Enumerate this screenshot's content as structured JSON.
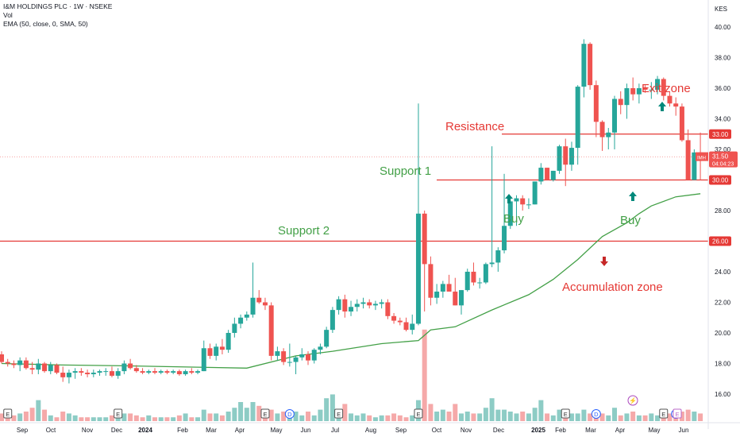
{
  "legend": {
    "title": "I&M HOLDINGS PLC · 1W · NSEKE",
    "vol": "Vol",
    "ema": "EMA (50, close, 0, SMA, 50)"
  },
  "currency": "KES",
  "price_tag": {
    "symbol": "IMH",
    "price": "31.50",
    "countdown": "04:04:23"
  },
  "colors": {
    "up": "#26a69a",
    "down": "#ef5350",
    "vol_up": "#8dccc5",
    "vol_down": "#f5a9a9",
    "ema": "#43a047",
    "hline": "#e53935",
    "green_text": "#43a047",
    "red_text": "#e53935"
  },
  "chart_data": {
    "type": "candlestick",
    "timeframe": "1W",
    "ylim": [
      14.5,
      40.8
    ],
    "y_ticks": [
      "16.00",
      "18.00",
      "20.00",
      "22.00",
      "24.00",
      "26.00",
      "28.00",
      "30.00",
      "32.00",
      "34.00",
      "36.00",
      "38.00",
      "40.00"
    ],
    "x_ticks": [
      "Sep",
      "Oct",
      "Nov",
      "Dec",
      "2024",
      "Feb",
      "Mar",
      "Apr",
      "May",
      "Jun",
      "Jul",
      "Aug",
      "Sep",
      "Oct",
      "Nov",
      "Dec",
      "2025",
      "Feb",
      "Mar",
      "Apr",
      "May",
      "Jun"
    ],
    "horizontal_levels": [
      {
        "price": 33.0,
        "label": "33.00",
        "from": "Dec 2024"
      },
      {
        "price": 30.0,
        "label": "30.00",
        "from": "Oct 2024"
      },
      {
        "price": 26.0,
        "label": "26.00",
        "from": "start"
      }
    ],
    "candles": [
      {
        "o": 18.6,
        "h": 18.8,
        "l": 18.0,
        "c": 18.1
      },
      {
        "o": 18.1,
        "h": 18.3,
        "l": 17.8,
        "c": 18.0
      },
      {
        "o": 18.0,
        "h": 18.2,
        "l": 17.7,
        "c": 17.9
      },
      {
        "o": 17.9,
        "h": 18.4,
        "l": 17.5,
        "c": 18.2
      },
      {
        "o": 18.2,
        "h": 18.4,
        "l": 17.6,
        "c": 17.7
      },
      {
        "o": 17.7,
        "h": 18.1,
        "l": 17.3,
        "c": 17.6
      },
      {
        "o": 17.6,
        "h": 18.3,
        "l": 17.3,
        "c": 18.0
      },
      {
        "o": 18.0,
        "h": 18.1,
        "l": 17.4,
        "c": 17.5
      },
      {
        "o": 17.5,
        "h": 18.1,
        "l": 17.3,
        "c": 17.9
      },
      {
        "o": 17.9,
        "h": 18.0,
        "l": 17.3,
        "c": 17.4
      },
      {
        "o": 17.4,
        "h": 17.8,
        "l": 16.8,
        "c": 17.1
      },
      {
        "o": 17.1,
        "h": 17.6,
        "l": 16.7,
        "c": 17.4
      },
      {
        "o": 17.4,
        "h": 17.7,
        "l": 17.0,
        "c": 17.5
      },
      {
        "o": 17.5,
        "h": 17.7,
        "l": 17.2,
        "c": 17.4
      },
      {
        "o": 17.4,
        "h": 17.6,
        "l": 17.1,
        "c": 17.3
      },
      {
        "o": 17.3,
        "h": 17.6,
        "l": 17.1,
        "c": 17.4
      },
      {
        "o": 17.4,
        "h": 17.6,
        "l": 17.2,
        "c": 17.5
      },
      {
        "o": 17.5,
        "h": 17.7,
        "l": 17.2,
        "c": 17.5
      },
      {
        "o": 17.5,
        "h": 17.8,
        "l": 17.1,
        "c": 17.2
      },
      {
        "o": 17.2,
        "h": 17.7,
        "l": 17.0,
        "c": 17.5
      },
      {
        "o": 17.5,
        "h": 18.2,
        "l": 17.3,
        "c": 18.0
      },
      {
        "o": 18.0,
        "h": 18.3,
        "l": 17.6,
        "c": 17.7
      },
      {
        "o": 17.7,
        "h": 17.9,
        "l": 17.4,
        "c": 17.5
      },
      {
        "o": 17.5,
        "h": 17.7,
        "l": 17.3,
        "c": 17.4
      },
      {
        "o": 17.4,
        "h": 17.6,
        "l": 17.3,
        "c": 17.5
      },
      {
        "o": 17.5,
        "h": 17.7,
        "l": 17.3,
        "c": 17.4
      },
      {
        "o": 17.4,
        "h": 17.6,
        "l": 17.3,
        "c": 17.5
      },
      {
        "o": 17.5,
        "h": 17.6,
        "l": 17.3,
        "c": 17.4
      },
      {
        "o": 17.4,
        "h": 17.6,
        "l": 17.3,
        "c": 17.5
      },
      {
        "o": 17.5,
        "h": 17.6,
        "l": 17.2,
        "c": 17.3
      },
      {
        "o": 17.3,
        "h": 17.6,
        "l": 17.2,
        "c": 17.5
      },
      {
        "o": 17.5,
        "h": 17.7,
        "l": 17.3,
        "c": 17.4
      },
      {
        "o": 17.4,
        "h": 17.6,
        "l": 17.3,
        "c": 17.5
      },
      {
        "o": 17.5,
        "h": 19.5,
        "l": 17.5,
        "c": 19.0
      },
      {
        "o": 19.0,
        "h": 19.3,
        "l": 18.3,
        "c": 18.5
      },
      {
        "o": 18.5,
        "h": 19.3,
        "l": 18.2,
        "c": 19.1
      },
      {
        "o": 19.1,
        "h": 19.6,
        "l": 18.6,
        "c": 18.9
      },
      {
        "o": 18.9,
        "h": 20.2,
        "l": 18.7,
        "c": 20.0
      },
      {
        "o": 20.0,
        "h": 21.0,
        "l": 19.7,
        "c": 20.6
      },
      {
        "o": 20.6,
        "h": 21.2,
        "l": 20.3,
        "c": 21.0
      },
      {
        "o": 21.0,
        "h": 21.4,
        "l": 20.8,
        "c": 21.2
      },
      {
        "o": 21.2,
        "h": 24.6,
        "l": 21.0,
        "c": 22.3
      },
      {
        "o": 22.3,
        "h": 22.8,
        "l": 21.9,
        "c": 22.0
      },
      {
        "o": 22.0,
        "h": 22.3,
        "l": 21.5,
        "c": 21.8
      },
      {
        "o": 21.8,
        "h": 22.0,
        "l": 18.2,
        "c": 18.5
      },
      {
        "o": 18.5,
        "h": 19.1,
        "l": 18.2,
        "c": 18.8
      },
      {
        "o": 18.8,
        "h": 19.0,
        "l": 17.9,
        "c": 18.1
      },
      {
        "o": 18.1,
        "h": 19.3,
        "l": 17.8,
        "c": 18.1
      },
      {
        "o": 18.1,
        "h": 18.5,
        "l": 17.3,
        "c": 18.4
      },
      {
        "o": 18.4,
        "h": 19.0,
        "l": 18.2,
        "c": 18.6
      },
      {
        "o": 18.6,
        "h": 18.8,
        "l": 17.9,
        "c": 18.2
      },
      {
        "o": 18.2,
        "h": 19.0,
        "l": 18.0,
        "c": 18.9
      },
      {
        "o": 18.9,
        "h": 19.3,
        "l": 18.6,
        "c": 19.1
      },
      {
        "o": 19.1,
        "h": 20.4,
        "l": 19.0,
        "c": 20.2
      },
      {
        "o": 20.2,
        "h": 21.7,
        "l": 20.0,
        "c": 21.5
      },
      {
        "o": 21.5,
        "h": 22.4,
        "l": 21.2,
        "c": 22.2
      },
      {
        "o": 22.2,
        "h": 22.5,
        "l": 21.0,
        "c": 21.4
      },
      {
        "o": 21.4,
        "h": 22.1,
        "l": 21.1,
        "c": 21.7
      },
      {
        "o": 21.7,
        "h": 22.2,
        "l": 21.4,
        "c": 21.9
      },
      {
        "o": 21.9,
        "h": 22.3,
        "l": 21.6,
        "c": 22.0
      },
      {
        "o": 22.0,
        "h": 22.2,
        "l": 21.6,
        "c": 21.8
      },
      {
        "o": 21.8,
        "h": 22.1,
        "l": 21.5,
        "c": 21.9
      },
      {
        "o": 21.9,
        "h": 22.2,
        "l": 21.6,
        "c": 22.0
      },
      {
        "o": 22.0,
        "h": 22.2,
        "l": 20.9,
        "c": 21.1
      },
      {
        "o": 21.1,
        "h": 21.3,
        "l": 20.6,
        "c": 20.8
      },
      {
        "o": 20.8,
        "h": 21.0,
        "l": 20.5,
        "c": 20.7
      },
      {
        "o": 20.7,
        "h": 21.0,
        "l": 20.1,
        "c": 20.2
      },
      {
        "o": 20.2,
        "h": 21.2,
        "l": 19.9,
        "c": 20.6
      },
      {
        "o": 20.6,
        "h": 35.0,
        "l": 20.5,
        "c": 27.8
      },
      {
        "o": 27.8,
        "h": 28.0,
        "l": 21.4,
        "c": 24.5
      },
      {
        "o": 24.5,
        "h": 25.0,
        "l": 21.8,
        "c": 22.3
      },
      {
        "o": 22.3,
        "h": 23.2,
        "l": 21.9,
        "c": 22.7
      },
      {
        "o": 22.7,
        "h": 23.4,
        "l": 22.3,
        "c": 23.2
      },
      {
        "o": 23.2,
        "h": 23.8,
        "l": 22.9,
        "c": 22.7
      },
      {
        "o": 22.7,
        "h": 23.6,
        "l": 21.8,
        "c": 21.8
      },
      {
        "o": 21.8,
        "h": 22.8,
        "l": 21.2,
        "c": 22.8
      },
      {
        "o": 22.8,
        "h": 24.2,
        "l": 22.7,
        "c": 24.0
      },
      {
        "o": 24.0,
        "h": 24.6,
        "l": 23.1,
        "c": 23.3
      },
      {
        "o": 23.3,
        "h": 23.6,
        "l": 22.9,
        "c": 23.3
      },
      {
        "o": 23.3,
        "h": 24.6,
        "l": 23.2,
        "c": 24.5
      },
      {
        "o": 24.5,
        "h": 32.2,
        "l": 24.3,
        "c": 24.6
      },
      {
        "o": 24.6,
        "h": 25.6,
        "l": 24.0,
        "c": 25.4
      },
      {
        "o": 25.4,
        "h": 30.4,
        "l": 25.2,
        "c": 27.0
      },
      {
        "o": 27.0,
        "h": 28.8,
        "l": 26.8,
        "c": 28.6
      },
      {
        "o": 28.6,
        "h": 29.0,
        "l": 27.0,
        "c": 28.8
      },
      {
        "o": 28.8,
        "h": 29.0,
        "l": 28.0,
        "c": 28.4
      },
      {
        "o": 28.4,
        "h": 28.8,
        "l": 28.1,
        "c": 28.4
      },
      {
        "o": 28.4,
        "h": 29.9,
        "l": 28.4,
        "c": 29.9
      },
      {
        "o": 29.9,
        "h": 31.1,
        "l": 29.7,
        "c": 30.8
      },
      {
        "o": 30.8,
        "h": 30.8,
        "l": 30.0,
        "c": 30.0
      },
      {
        "o": 30.0,
        "h": 30.6,
        "l": 29.9,
        "c": 30.6
      },
      {
        "o": 30.6,
        "h": 32.3,
        "l": 30.4,
        "c": 32.2
      },
      {
        "o": 32.2,
        "h": 32.7,
        "l": 29.6,
        "c": 31.0
      },
      {
        "o": 31.0,
        "h": 32.5,
        "l": 30.6,
        "c": 32.1
      },
      {
        "o": 32.1,
        "h": 36.2,
        "l": 31.0,
        "c": 36.1
      },
      {
        "o": 36.1,
        "h": 39.2,
        "l": 35.4,
        "c": 38.9
      },
      {
        "o": 38.9,
        "h": 39.0,
        "l": 35.9,
        "c": 36.2
      },
      {
        "o": 36.2,
        "h": 36.5,
        "l": 32.8,
        "c": 33.8
      },
      {
        "o": 33.8,
        "h": 33.9,
        "l": 31.9,
        "c": 32.8
      },
      {
        "o": 32.8,
        "h": 33.4,
        "l": 32.0,
        "c": 33.1
      },
      {
        "o": 33.1,
        "h": 35.5,
        "l": 32.0,
        "c": 35.3
      },
      {
        "o": 35.3,
        "h": 35.8,
        "l": 34.3,
        "c": 34.9
      },
      {
        "o": 34.9,
        "h": 36.3,
        "l": 34.0,
        "c": 36.0
      },
      {
        "o": 36.0,
        "h": 36.7,
        "l": 35.2,
        "c": 35.6
      },
      {
        "o": 35.6,
        "h": 36.3,
        "l": 35.0,
        "c": 36.0
      },
      {
        "o": 36.0,
        "h": 36.2,
        "l": 35.7,
        "c": 35.9
      },
      {
        "o": 35.9,
        "h": 36.4,
        "l": 35.3,
        "c": 35.9
      },
      {
        "o": 35.9,
        "h": 36.8,
        "l": 35.6,
        "c": 36.6
      },
      {
        "o": 36.6,
        "h": 36.7,
        "l": 35.2,
        "c": 35.5
      },
      {
        "o": 35.5,
        "h": 35.8,
        "l": 34.8,
        "c": 35.0
      },
      {
        "o": 35.0,
        "h": 35.4,
        "l": 34.2,
        "c": 34.8
      },
      {
        "o": 34.8,
        "h": 35.0,
        "l": 32.5,
        "c": 32.6
      },
      {
        "o": 32.6,
        "h": 33.3,
        "l": 30.0,
        "c": 30.0
      },
      {
        "o": 30.0,
        "h": 32.0,
        "l": 30.0,
        "c": 31.8
      },
      {
        "o": 31.8,
        "h": 33.1,
        "l": 30.0,
        "c": 31.5
      }
    ],
    "volume": [
      0.4,
      0.3,
      0.3,
      0.4,
      0.5,
      0.7,
      1.1,
      0.6,
      0.3,
      0.2,
      0.5,
      0.4,
      0.3,
      0.2,
      0.2,
      0.2,
      0.2,
      0.2,
      0.3,
      0.3,
      0.4,
      0.4,
      0.3,
      0.2,
      0.3,
      0.2,
      0.2,
      0.2,
      0.2,
      0.3,
      0.4,
      0.2,
      0.2,
      0.6,
      0.4,
      0.4,
      0.3,
      0.5,
      0.7,
      1.0,
      0.7,
      1.0,
      0.8,
      0.4,
      0.6,
      0.4,
      0.5,
      0.3,
      0.5,
      0.3,
      0.5,
      0.3,
      0.6,
      1.2,
      1.4,
      0.5,
      0.9,
      0.4,
      0.3,
      0.4,
      0.3,
      0.2,
      0.3,
      0.3,
      0.4,
      0.3,
      0.2,
      0.3,
      1.1,
      4.8,
      0.9,
      0.5,
      0.6,
      0.5,
      0.9,
      0.4,
      0.5,
      0.4,
      0.4,
      0.7,
      1.2,
      0.6,
      0.6,
      0.5,
      0.4,
      0.5,
      0.4,
      0.7,
      1.1,
      0.4,
      0.3,
      0.6,
      0.5,
      0.4,
      0.4,
      0.6,
      0.4,
      0.3,
      0.4,
      0.3,
      0.7,
      0.3,
      0.4,
      0.5,
      0.3,
      0.3,
      0.4,
      0.3,
      0.3,
      0.4,
      0.4,
      0.5,
      0.6,
      0.5,
      0.4
    ],
    "volume_overrides_units": "relative",
    "ema": [
      [
        0,
        18.0
      ],
      [
        10,
        17.9
      ],
      [
        20,
        17.85
      ],
      [
        40,
        17.7
      ],
      [
        48,
        18.5
      ],
      [
        54,
        18.8
      ],
      [
        62,
        19.3
      ],
      [
        68,
        19.5
      ],
      [
        70,
        20.2
      ],
      [
        74,
        20.4
      ],
      [
        80,
        21.5
      ],
      [
        86,
        22.5
      ],
      [
        90,
        23.5
      ],
      [
        94,
        24.8
      ],
      [
        98,
        26.3
      ],
      [
        102,
        27.2
      ],
      [
        104,
        27.8
      ],
      [
        106,
        28.3
      ],
      [
        110,
        28.9
      ],
      [
        114,
        29.1
      ]
    ]
  },
  "annotations": {
    "exit_zone": "Exit zone",
    "resistance": "Resistance",
    "support1": "Support 1",
    "support2": "Support 2",
    "buy1": "Buy",
    "buy2": "Buy",
    "accumulation": "Accumulation zone"
  },
  "event_markers": [
    {
      "label": "E",
      "idx": 1
    },
    {
      "label": "E",
      "idx": 19
    },
    {
      "label": "E",
      "idx": 43
    },
    {
      "label": "D",
      "idx": 47
    },
    {
      "label": "E",
      "idx": 55
    },
    {
      "label": "E",
      "idx": 68
    },
    {
      "label": "E",
      "idx": 92
    },
    {
      "label": "D",
      "idx": 97
    },
    {
      "label": "E",
      "idx": 108
    },
    {
      "label": "D",
      "idx": 110
    }
  ],
  "future_markers": [
    {
      "label": "E",
      "at": "Jun"
    },
    {
      "label": "⚡",
      "at": "Apr"
    }
  ]
}
